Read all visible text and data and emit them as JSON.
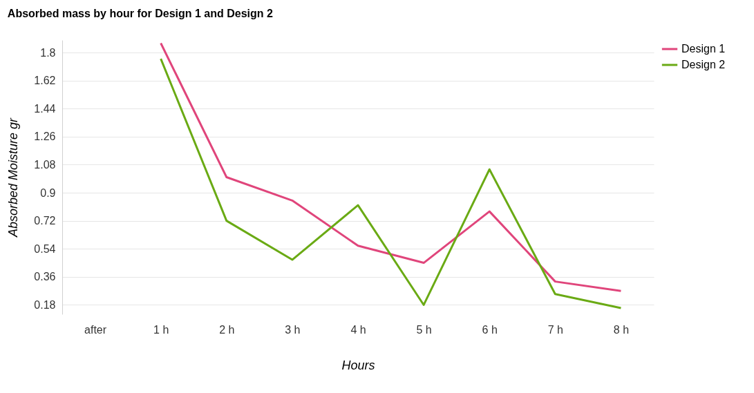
{
  "chart_data": {
    "type": "line",
    "title": "Absorbed mass by hour for Design 1 and Design 2",
    "xlabel": "Hours",
    "ylabel": "Absorbed Moisture gr",
    "categories": [
      "after",
      "1 h",
      "2 h",
      "3 h",
      "4 h",
      "5 h",
      "6 h",
      "7 h",
      "8 h"
    ],
    "series": [
      {
        "name": "Design 1",
        "color": "#e0457b",
        "values": [
          null,
          1.86,
          1.0,
          0.85,
          0.56,
          0.45,
          0.78,
          0.33,
          0.27
        ]
      },
      {
        "name": "Design 2",
        "color": "#6aaa14",
        "values": [
          null,
          1.76,
          0.72,
          0.47,
          0.82,
          0.18,
          1.05,
          0.25,
          0.16
        ]
      }
    ],
    "ylim": [
      0.12,
      1.88
    ],
    "yticks": [
      0.18,
      0.36,
      0.54,
      0.72,
      0.9,
      1.08,
      1.26,
      1.44,
      1.62,
      1.8
    ],
    "grid": "y",
    "legend": "right",
    "marker": "none",
    "line_style": "solid"
  }
}
